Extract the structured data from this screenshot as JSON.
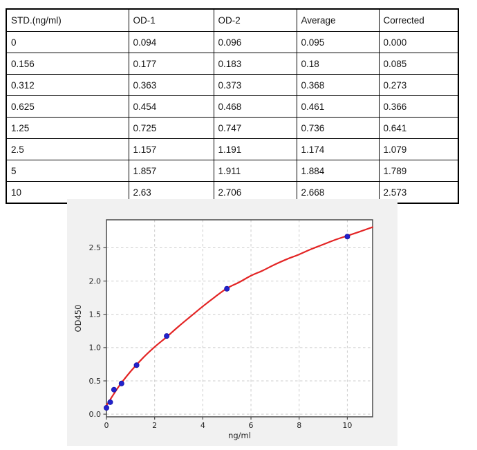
{
  "table": {
    "headers": [
      "STD.(ng/ml)",
      "OD-1",
      "OD-2",
      "Average",
      "Corrected"
    ],
    "rows": [
      [
        "0",
        "0.094",
        "0.096",
        "0.095",
        "0.000"
      ],
      [
        "0.156",
        "0.177",
        "0.183",
        "0.18",
        "0.085"
      ],
      [
        "0.312",
        "0.363",
        "0.373",
        "0.368",
        "0.273"
      ],
      [
        "0.625",
        "0.454",
        "0.468",
        "0.461",
        "0.366"
      ],
      [
        "1.25",
        "0.725",
        "0.747",
        "0.736",
        "0.641"
      ],
      [
        "2.5",
        "1.157",
        "1.191",
        "1.174",
        "1.079"
      ],
      [
        "5",
        "1.857",
        "1.911",
        "1.884",
        "1.789"
      ],
      [
        "10",
        "2.63",
        "2.706",
        "2.668",
        "2.573"
      ]
    ]
  },
  "chart_data": {
    "type": "scatter",
    "title": "",
    "xlabel": "ng/ml",
    "ylabel": "OD450",
    "xlim": [
      0,
      11.05
    ],
    "ylim": [
      -0.04,
      2.92
    ],
    "xticks": [
      0,
      2,
      4,
      6,
      8,
      10
    ],
    "xtick_labels": [
      "0",
      "2",
      "4",
      "6",
      "8",
      "10"
    ],
    "yticks": [
      0,
      0.5,
      1,
      1.5,
      2,
      2.5
    ],
    "ytick_labels": [
      "0.0",
      "0.5",
      "1.0",
      "1.5",
      "2.0",
      "2.5"
    ],
    "grid": true,
    "legend": "none",
    "colors": {
      "figure_bg": "#f1f1f1",
      "plot_bg": "#ffffff",
      "spine": "#4a4a4a",
      "grid": "#cccccc",
      "curve": "#e32424",
      "point_fill": "#2222cc",
      "point_edge": "#1414a8",
      "text": "#262626"
    },
    "series": [
      {
        "name": "standard-points",
        "type": "scatter",
        "x": [
          0,
          0.156,
          0.312,
          0.625,
          1.25,
          2.5,
          5,
          10
        ],
        "y": [
          0.095,
          0.18,
          0.368,
          0.461,
          0.736,
          1.174,
          1.884,
          2.668
        ]
      },
      {
        "name": "fit-curve",
        "type": "line",
        "x": [
          0,
          0.5,
          1,
          1.5,
          2,
          2.5,
          3,
          3.5,
          4,
          4.5,
          5,
          5.5,
          6,
          6.5,
          7,
          7.5,
          8,
          8.5,
          9,
          9.5,
          10,
          10.5,
          11.05
        ],
        "y": [
          0.13,
          0.41,
          0.64,
          0.84,
          1.01,
          1.16,
          1.32,
          1.47,
          1.62,
          1.76,
          1.89,
          1.98,
          2.08,
          2.16,
          2.25,
          2.33,
          2.4,
          2.48,
          2.55,
          2.62,
          2.68,
          2.74,
          2.81
        ]
      }
    ]
  }
}
